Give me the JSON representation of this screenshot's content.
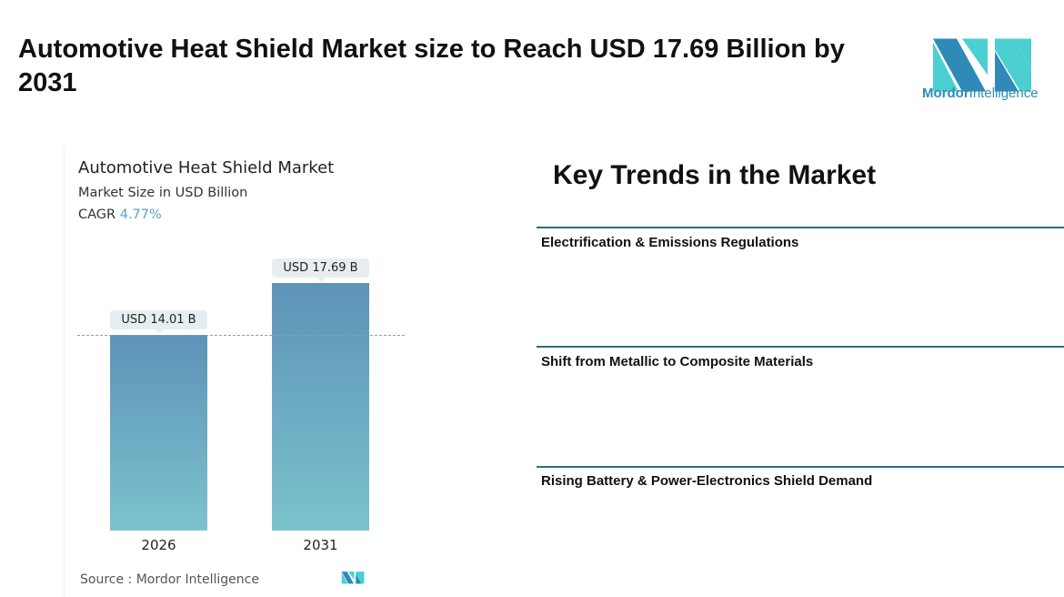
{
  "header": {
    "title": "Automotive Heat Shield Market size to Reach USD 17.69 Billion by 2031"
  },
  "logo": {
    "brand_a": "Mordor",
    "brand_b": "Intelligence"
  },
  "chart_data": {
    "type": "bar",
    "title": "Automotive Heat Shield Market",
    "subtitle": "Market Size in USD Billion",
    "cagr_label": "CAGR",
    "cagr_value": "4.77%",
    "categories": [
      "2026",
      "2031"
    ],
    "values": [
      14.01,
      17.69
    ],
    "data_labels": [
      "USD 14.01 B",
      "USD 17.69 B"
    ],
    "ylim": [
      0,
      17.69
    ],
    "reference_line": 14.01,
    "colors": {
      "bar_top": "#5d93b8",
      "bar_bottom": "#7cc2cc",
      "cagr": "#5aa0c8"
    },
    "source": "Source :  Mordor Intelligence"
  },
  "trends": {
    "title": "Key Trends in the Market",
    "items": [
      "Electrification & Emissions Regulations",
      "Shift from Metallic to Composite Materials",
      "Rising Battery & Power-Electronics Shield Demand"
    ]
  }
}
